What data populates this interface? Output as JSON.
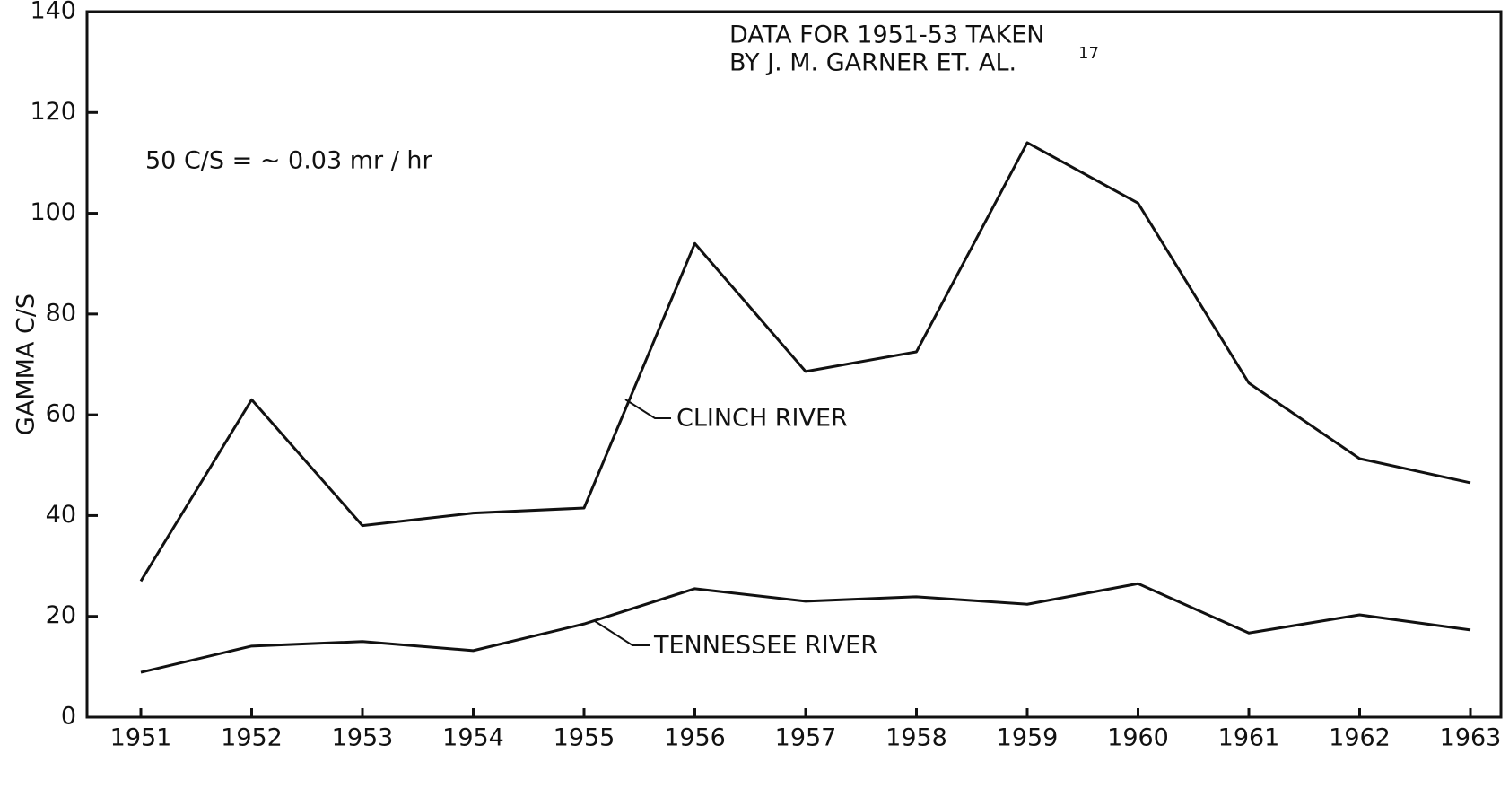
{
  "chart_data": {
    "type": "line",
    "ylabel": "GAMMA C/S",
    "annotations": [
      "DATA FOR 1951-53 TAKEN",
      "BY J. M. GARNER ET. AL.",
      "17",
      "50 C/S = ∼ 0.03 mr / hr"
    ],
    "categories": [
      "1951",
      "1952",
      "1953",
      "1954",
      "1955",
      "1956",
      "1957",
      "1958",
      "1959",
      "1960",
      "1961",
      "1962",
      "1963"
    ],
    "series": [
      {
        "name": "CLINCH RIVER",
        "color": "#111111",
        "values": [
          27,
          63,
          38,
          40.5,
          41.5,
          94,
          68.6,
          72.5,
          114,
          102,
          66.3,
          51.3,
          46.5
        ]
      },
      {
        "name": "TENNESSEE RIVER",
        "color": "#111111",
        "values": [
          8.9,
          14.1,
          15,
          13.2,
          18.5,
          25.5,
          23,
          23.9,
          22.4,
          26.5,
          16.7,
          20.3,
          17.3
        ]
      }
    ],
    "ylim": [
      0,
      140
    ],
    "yticks": [
      0,
      20,
      40,
      60,
      80,
      100,
      120,
      140
    ],
    "grid": false
  }
}
